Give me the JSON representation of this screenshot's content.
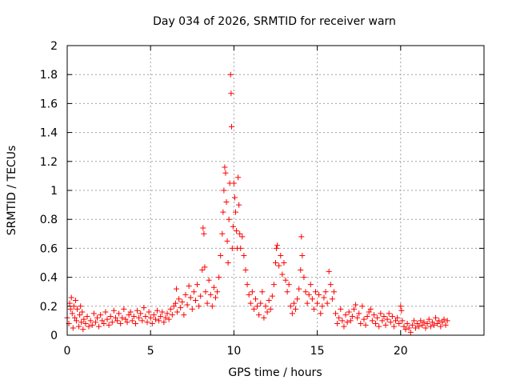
{
  "chart_data": {
    "type": "scatter",
    "title": "Day 034 of 2026, SRMTID for receiver warn",
    "xlabel": "GPS time / hours",
    "ylabel": "SRMTID / TECUs",
    "xlim": [
      0,
      25
    ],
    "ylim": [
      0,
      2
    ],
    "xticks": [
      0,
      5,
      10,
      15,
      20
    ],
    "yticks": [
      0,
      0.2,
      0.4,
      0.6,
      0.8,
      1,
      1.2,
      1.4,
      1.6,
      1.8,
      2
    ],
    "xtick_labels": [
      "0",
      "5",
      "10",
      "15",
      "20"
    ],
    "ytick_labels": [
      "0",
      "0.2",
      "0.4",
      "0.6",
      "0.8",
      "1",
      "1.2",
      "1.4",
      "1.6",
      "1.8",
      "2"
    ],
    "grid": true,
    "marker": "+",
    "color": "#ff0000",
    "series": [
      {
        "name": "SRMTID",
        "points": [
          [
            0.0,
            0.12
          ],
          [
            0.1,
            0.08
          ],
          [
            0.15,
            0.22
          ],
          [
            0.2,
            0.18
          ],
          [
            0.25,
            0.26
          ],
          [
            0.3,
            0.15
          ],
          [
            0.35,
            0.05
          ],
          [
            0.4,
            0.2
          ],
          [
            0.45,
            0.12
          ],
          [
            0.5,
            0.24
          ],
          [
            0.55,
            0.1
          ],
          [
            0.6,
            0.18
          ],
          [
            0.7,
            0.06
          ],
          [
            0.75,
            0.14
          ],
          [
            0.8,
            0.2
          ],
          [
            0.85,
            0.09
          ],
          [
            0.9,
            0.16
          ],
          [
            0.95,
            0.04
          ],
          [
            1.0,
            0.11
          ],
          [
            1.1,
            0.08
          ],
          [
            1.2,
            0.13
          ],
          [
            1.3,
            0.06
          ],
          [
            1.4,
            0.1
          ],
          [
            1.5,
            0.07
          ],
          [
            1.6,
            0.15
          ],
          [
            1.7,
            0.09
          ],
          [
            1.8,
            0.12
          ],
          [
            1.9,
            0.06
          ],
          [
            2.0,
            0.14
          ],
          [
            2.1,
            0.1
          ],
          [
            2.2,
            0.08
          ],
          [
            2.3,
            0.16
          ],
          [
            2.4,
            0.11
          ],
          [
            2.5,
            0.07
          ],
          [
            2.6,
            0.13
          ],
          [
            2.7,
            0.09
          ],
          [
            2.8,
            0.17
          ],
          [
            2.9,
            0.12
          ],
          [
            3.0,
            0.1
          ],
          [
            3.1,
            0.15
          ],
          [
            3.2,
            0.08
          ],
          [
            3.3,
            0.12
          ],
          [
            3.4,
            0.18
          ],
          [
            3.5,
            0.11
          ],
          [
            3.6,
            0.09
          ],
          [
            3.7,
            0.14
          ],
          [
            3.8,
            0.16
          ],
          [
            3.9,
            0.1
          ],
          [
            4.0,
            0.13
          ],
          [
            4.1,
            0.08
          ],
          [
            4.2,
            0.17
          ],
          [
            4.3,
            0.12
          ],
          [
            4.4,
            0.15
          ],
          [
            4.5,
            0.1
          ],
          [
            4.6,
            0.19
          ],
          [
            4.7,
            0.13
          ],
          [
            4.8,
            0.09
          ],
          [
            4.9,
            0.16
          ],
          [
            5.0,
            0.12
          ],
          [
            5.1,
            0.08
          ],
          [
            5.2,
            0.14
          ],
          [
            5.3,
            0.11
          ],
          [
            5.4,
            0.17
          ],
          [
            5.5,
            0.1
          ],
          [
            5.6,
            0.13
          ],
          [
            5.7,
            0.16
          ],
          [
            5.8,
            0.09
          ],
          [
            5.9,
            0.12
          ],
          [
            6.0,
            0.15
          ],
          [
            6.1,
            0.11
          ],
          [
            6.2,
            0.18
          ],
          [
            6.3,
            0.14
          ],
          [
            6.4,
            0.2
          ],
          [
            6.5,
            0.22
          ],
          [
            6.55,
            0.32
          ],
          [
            6.6,
            0.16
          ],
          [
            6.7,
            0.25
          ],
          [
            6.8,
            0.19
          ],
          [
            6.9,
            0.23
          ],
          [
            7.0,
            0.14
          ],
          [
            7.1,
            0.28
          ],
          [
            7.2,
            0.21
          ],
          [
            7.3,
            0.34
          ],
          [
            7.4,
            0.26
          ],
          [
            7.5,
            0.18
          ],
          [
            7.6,
            0.3
          ],
          [
            7.7,
            0.24
          ],
          [
            7.8,
            0.35
          ],
          [
            7.9,
            0.2
          ],
          [
            8.0,
            0.27
          ],
          [
            8.1,
            0.45
          ],
          [
            8.15,
            0.74
          ],
          [
            8.2,
            0.7
          ],
          [
            8.25,
            0.47
          ],
          [
            8.3,
            0.3
          ],
          [
            8.4,
            0.22
          ],
          [
            8.5,
            0.38
          ],
          [
            8.6,
            0.28
          ],
          [
            8.7,
            0.2
          ],
          [
            8.8,
            0.33
          ],
          [
            8.9,
            0.26
          ],
          [
            9.0,
            0.3
          ],
          [
            9.1,
            0.4
          ],
          [
            9.2,
            0.55
          ],
          [
            9.3,
            0.7
          ],
          [
            9.35,
            0.85
          ],
          [
            9.4,
            1.0
          ],
          [
            9.45,
            1.16
          ],
          [
            9.5,
            1.12
          ],
          [
            9.55,
            0.92
          ],
          [
            9.6,
            0.65
          ],
          [
            9.65,
            0.5
          ],
          [
            9.7,
            0.8
          ],
          [
            9.75,
            1.05
          ],
          [
            9.8,
            1.8
          ],
          [
            9.83,
            1.67
          ],
          [
            9.86,
            1.44
          ],
          [
            9.9,
            0.6
          ],
          [
            9.95,
            0.75
          ],
          [
            10.0,
            1.05
          ],
          [
            10.05,
            0.95
          ],
          [
            10.1,
            0.85
          ],
          [
            10.15,
            0.72
          ],
          [
            10.2,
            0.6
          ],
          [
            10.25,
            1.09
          ],
          [
            10.3,
            0.9
          ],
          [
            10.35,
            0.7
          ],
          [
            10.4,
            0.6
          ],
          [
            10.5,
            0.68
          ],
          [
            10.6,
            0.55
          ],
          [
            10.7,
            0.45
          ],
          [
            10.8,
            0.35
          ],
          [
            10.9,
            0.28
          ],
          [
            11.0,
            0.22
          ],
          [
            11.1,
            0.3
          ],
          [
            11.2,
            0.18
          ],
          [
            11.3,
            0.25
          ],
          [
            11.4,
            0.2
          ],
          [
            11.5,
            0.14
          ],
          [
            11.6,
            0.22
          ],
          [
            11.7,
            0.3
          ],
          [
            11.8,
            0.12
          ],
          [
            11.9,
            0.2
          ],
          [
            12.0,
            0.16
          ],
          [
            12.1,
            0.24
          ],
          [
            12.2,
            0.18
          ],
          [
            12.3,
            0.27
          ],
          [
            12.4,
            0.35
          ],
          [
            12.5,
            0.5
          ],
          [
            12.55,
            0.6
          ],
          [
            12.6,
            0.62
          ],
          [
            12.7,
            0.48
          ],
          [
            12.8,
            0.55
          ],
          [
            12.9,
            0.42
          ],
          [
            13.0,
            0.5
          ],
          [
            13.1,
            0.38
          ],
          [
            13.2,
            0.3
          ],
          [
            13.3,
            0.35
          ],
          [
            13.4,
            0.2
          ],
          [
            13.5,
            0.15
          ],
          [
            13.6,
            0.22
          ],
          [
            13.7,
            0.18
          ],
          [
            13.8,
            0.25
          ],
          [
            13.9,
            0.32
          ],
          [
            14.0,
            0.45
          ],
          [
            14.05,
            0.68
          ],
          [
            14.1,
            0.55
          ],
          [
            14.2,
            0.4
          ],
          [
            14.3,
            0.3
          ],
          [
            14.4,
            0.22
          ],
          [
            14.5,
            0.28
          ],
          [
            14.6,
            0.35
          ],
          [
            14.7,
            0.25
          ],
          [
            14.8,
            0.18
          ],
          [
            14.9,
            0.3
          ],
          [
            15.0,
            0.22
          ],
          [
            15.1,
            0.28
          ],
          [
            15.2,
            0.15
          ],
          [
            15.3,
            0.2
          ],
          [
            15.4,
            0.26
          ],
          [
            15.5,
            0.3
          ],
          [
            15.6,
            0.22
          ],
          [
            15.7,
            0.44
          ],
          [
            15.8,
            0.35
          ],
          [
            15.9,
            0.25
          ],
          [
            16.0,
            0.3
          ],
          [
            16.1,
            0.15
          ],
          [
            16.2,
            0.08
          ],
          [
            16.3,
            0.12
          ],
          [
            16.4,
            0.18
          ],
          [
            16.5,
            0.1
          ],
          [
            16.6,
            0.06
          ],
          [
            16.7,
            0.14
          ],
          [
            16.8,
            0.09
          ],
          [
            16.9,
            0.16
          ],
          [
            17.0,
            0.1
          ],
          [
            17.1,
            0.13
          ],
          [
            17.2,
            0.18
          ],
          [
            17.3,
            0.21
          ],
          [
            17.4,
            0.12
          ],
          [
            17.5,
            0.15
          ],
          [
            17.6,
            0.08
          ],
          [
            17.7,
            0.2
          ],
          [
            17.8,
            0.11
          ],
          [
            17.9,
            0.07
          ],
          [
            18.0,
            0.13
          ],
          [
            18.1,
            0.16
          ],
          [
            18.2,
            0.18
          ],
          [
            18.3,
            0.1
          ],
          [
            18.4,
            0.14
          ],
          [
            18.5,
            0.08
          ],
          [
            18.6,
            0.12
          ],
          [
            18.7,
            0.06
          ],
          [
            18.8,
            0.15
          ],
          [
            18.9,
            0.1
          ],
          [
            19.0,
            0.13
          ],
          [
            19.1,
            0.07
          ],
          [
            19.2,
            0.11
          ],
          [
            19.3,
            0.15
          ],
          [
            19.4,
            0.09
          ],
          [
            19.5,
            0.13
          ],
          [
            19.6,
            0.06
          ],
          [
            19.7,
            0.1
          ],
          [
            19.8,
            0.12
          ],
          [
            19.9,
            0.08
          ],
          [
            20.0,
            0.2
          ],
          [
            20.05,
            0.17
          ],
          [
            20.1,
            0.1
          ],
          [
            20.2,
            0.06
          ],
          [
            20.3,
            0.04
          ],
          [
            20.4,
            0.08
          ],
          [
            20.5,
            0.05
          ],
          [
            20.6,
            0.02
          ],
          [
            20.7,
            0.07
          ],
          [
            20.8,
            0.1
          ],
          [
            20.9,
            0.05
          ],
          [
            21.0,
            0.08
          ],
          [
            21.1,
            0.06
          ],
          [
            21.2,
            0.1
          ],
          [
            21.3,
            0.07
          ],
          [
            21.4,
            0.09
          ],
          [
            21.5,
            0.05
          ],
          [
            21.6,
            0.08
          ],
          [
            21.7,
            0.11
          ],
          [
            21.8,
            0.06
          ],
          [
            21.9,
            0.09
          ],
          [
            22.0,
            0.07
          ],
          [
            22.1,
            0.12
          ],
          [
            22.2,
            0.08
          ],
          [
            22.3,
            0.1
          ],
          [
            22.4,
            0.06
          ],
          [
            22.5,
            0.09
          ],
          [
            22.6,
            0.11
          ],
          [
            22.7,
            0.07
          ],
          [
            22.8,
            0.1
          ]
        ]
      }
    ]
  }
}
